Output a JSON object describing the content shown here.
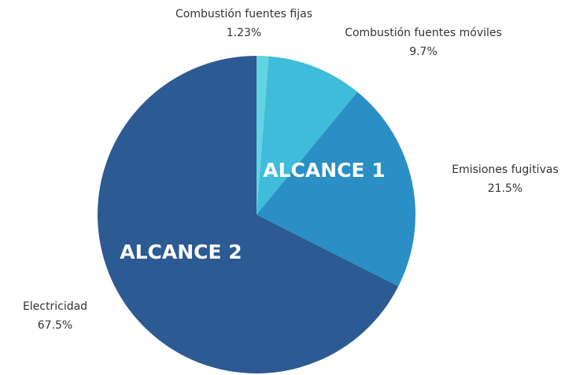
{
  "chart_data": {
    "type": "pie",
    "categories": [
      "Combustión fuentes fijas",
      "Combustión fuentes móviles",
      "Emisiones fugitivas",
      "Electricidad"
    ],
    "values": [
      1.23,
      9.7,
      21.5,
      67.5
    ],
    "value_labels": [
      "1.23%",
      "9.7%",
      "21.5%",
      "67.5%"
    ],
    "colors": [
      "#62d4e2",
      "#3fbcd9",
      "#2a8fc5",
      "#2c5a93"
    ],
    "annotations": [
      "ALCANCE 1",
      "ALCANCE 2"
    ]
  }
}
